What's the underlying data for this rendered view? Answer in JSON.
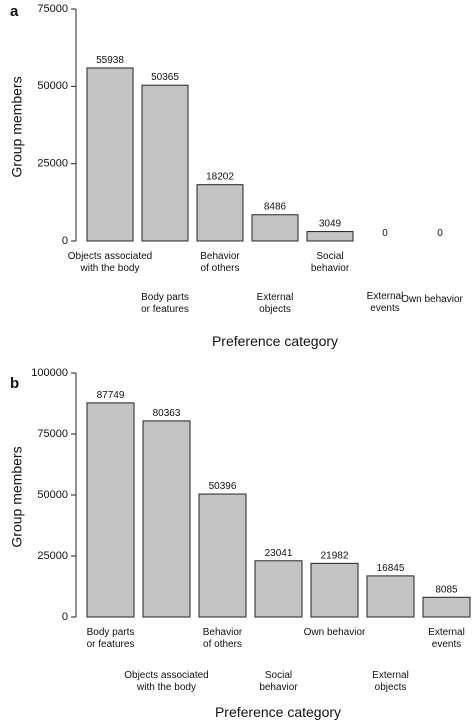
{
  "colors": {
    "bar": "#c4c4c4",
    "bar_edge": "#222222",
    "axis": "#222222",
    "text": "#111111"
  },
  "chart_data": [
    {
      "type": "bar",
      "panel": "a",
      "title": "",
      "xlabel": "Preference category",
      "ylabel": "Group members",
      "ylim": [
        0,
        75000
      ],
      "yticks": [
        0,
        25000,
        50000,
        75000
      ],
      "grid": false,
      "categories": [
        [
          "Objects associated",
          "with the body"
        ],
        [
          "Body parts",
          "or features"
        ],
        [
          "Behavior",
          "of others"
        ],
        [
          "External",
          "objects"
        ],
        [
          "Social",
          "behavior"
        ],
        [
          "External",
          "events"
        ],
        [
          "Own behavior"
        ]
      ],
      "values": [
        55938,
        50365,
        18202,
        8486,
        3049,
        0,
        0
      ],
      "labels": [
        "55938",
        "50365",
        "18202",
        "8486",
        "3049",
        "0",
        "0"
      ]
    },
    {
      "type": "bar",
      "panel": "b",
      "title": "",
      "xlabel": "Preference category",
      "ylabel": "Group members",
      "ylim": [
        0,
        100000
      ],
      "yticks": [
        0,
        25000,
        50000,
        75000,
        100000
      ],
      "grid": false,
      "categories": [
        [
          "Body parts",
          "or features"
        ],
        [
          "Objects associated",
          "with the body"
        ],
        [
          "Behavior",
          "of others"
        ],
        [
          "Social",
          "behavior"
        ],
        [
          "Own behavior"
        ],
        [
          "External",
          "objects"
        ],
        [
          "External",
          "events"
        ]
      ],
      "values": [
        87749,
        80363,
        50396,
        23041,
        21982,
        16845,
        8085
      ],
      "labels": [
        "87749",
        "80363",
        "50396",
        "23041",
        "21982",
        "16845",
        "8085"
      ]
    }
  ]
}
